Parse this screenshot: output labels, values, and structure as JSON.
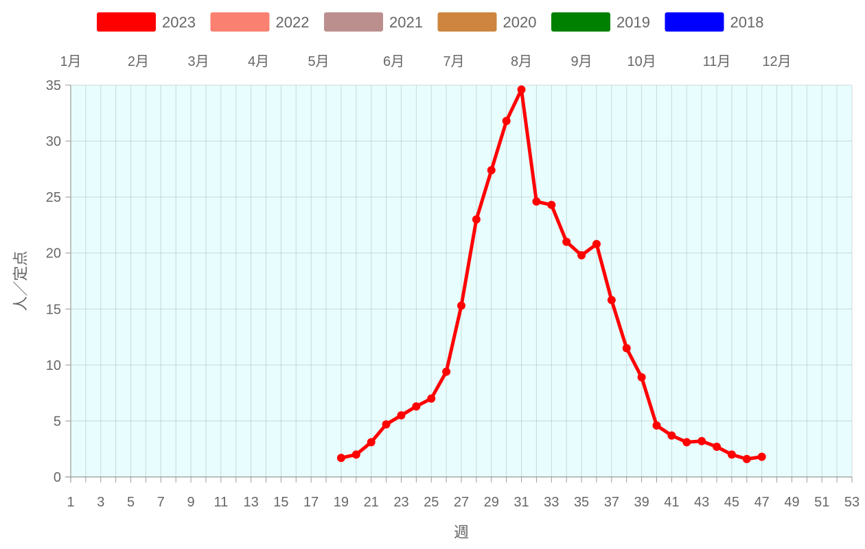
{
  "chart_data": {
    "type": "line",
    "xlabel": "週",
    "ylabel": "人／定点",
    "x_ticks": [
      1,
      3,
      5,
      7,
      9,
      11,
      13,
      15,
      17,
      19,
      21,
      23,
      25,
      27,
      29,
      31,
      33,
      35,
      37,
      39,
      41,
      43,
      45,
      47,
      49,
      51,
      53
    ],
    "xlim": [
      1,
      53
    ],
    "ylim": [
      0,
      35
    ],
    "y_ticks": [
      0,
      5,
      10,
      15,
      20,
      25,
      30,
      35
    ],
    "grid": true,
    "plot_background": "#e8fdfd",
    "legend_position": "top",
    "months": [
      {
        "label": "1月",
        "week": 1
      },
      {
        "label": "2月",
        "week": 5.5
      },
      {
        "label": "3月",
        "week": 9.5
      },
      {
        "label": "4月",
        "week": 13.5
      },
      {
        "label": "5月",
        "week": 17.5
      },
      {
        "label": "6月",
        "week": 22.5
      },
      {
        "label": "7月",
        "week": 26.5
      },
      {
        "label": "8月",
        "week": 31
      },
      {
        "label": "9月",
        "week": 35
      },
      {
        "label": "10月",
        "week": 39
      },
      {
        "label": "11月",
        "week": 44
      },
      {
        "label": "12月",
        "week": 48
      }
    ],
    "series": [
      {
        "name": "2023",
        "color": "#ff0000",
        "x": [
          19,
          20,
          21,
          22,
          23,
          24,
          25,
          26,
          27,
          28,
          29,
          30,
          31,
          32,
          33,
          34,
          35,
          36,
          37,
          38,
          39,
          40,
          41,
          42,
          43,
          44,
          45,
          46,
          47
        ],
        "values": [
          1.7,
          2.0,
          3.1,
          4.7,
          5.5,
          6.3,
          7.0,
          9.4,
          15.3,
          23.0,
          27.4,
          31.8,
          34.6,
          24.6,
          24.3,
          21.0,
          19.8,
          20.8,
          15.8,
          11.5,
          8.9,
          4.6,
          3.7,
          3.1,
          3.2,
          2.7,
          2.0,
          1.6,
          1.8
        ]
      },
      {
        "name": "2022",
        "color": "#fa8072",
        "x": [],
        "values": []
      },
      {
        "name": "2021",
        "color": "#bc8f8f",
        "x": [],
        "values": []
      },
      {
        "name": "2020",
        "color": "#cd853f",
        "x": [],
        "values": []
      },
      {
        "name": "2019",
        "color": "#008000",
        "x": [],
        "values": []
      },
      {
        "name": "2018",
        "color": "#0000ff",
        "x": [],
        "values": []
      }
    ]
  }
}
